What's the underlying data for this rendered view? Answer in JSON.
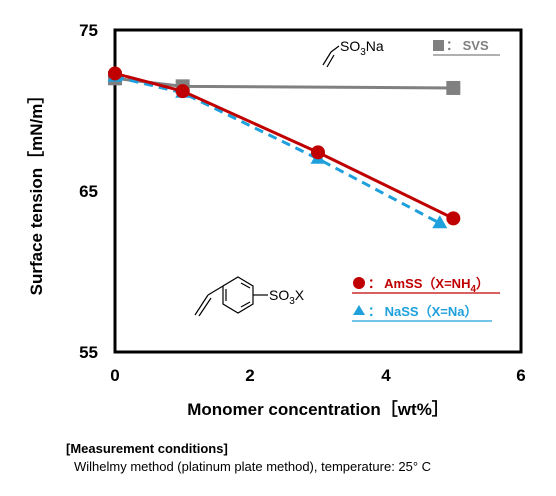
{
  "chart_data": {
    "type": "line",
    "xlabel": "Monomer concentration［wt%］",
    "ylabel": "Surface tension［mN/m］",
    "xlim": [
      0,
      6
    ],
    "ylim": [
      55,
      75
    ],
    "xticks": [
      "0",
      "2",
      "4",
      "6"
    ],
    "yticks": [
      "55",
      "65",
      "75"
    ],
    "grid": false,
    "legend_position": "lower-right and top-right",
    "series": [
      {
        "name": "AmSS（X=NH4）",
        "legend_label": "●：  AmSS（X=NH4）",
        "color": "#c00000",
        "marker": "circle",
        "line": "solid",
        "x": [
          0,
          1,
          3,
          5
        ],
        "y": [
          72.3,
          71.2,
          67.4,
          63.3
        ]
      },
      {
        "name": "NaSS（X=Na）",
        "legend_label": "▲：  NaSS（X=Na）",
        "color": "#1ea0dc",
        "marker": "triangle",
        "line": "dashed",
        "x": [
          0,
          1,
          3,
          4.8
        ],
        "y": [
          72.1,
          71.1,
          67.0,
          63.0
        ]
      },
      {
        "name": "SVS",
        "legend_label": "■：  SVS",
        "color": "#808080",
        "marker": "square",
        "line": "solid",
        "x": [
          0,
          1,
          5
        ],
        "y": [
          72.0,
          71.5,
          71.4
        ]
      }
    ],
    "annotations": {
      "svs_structure": "SO3Na",
      "ss_structure": "SO3X"
    }
  },
  "conditions": {
    "title": "[Measurement conditions]",
    "body": "Wilhelmy method (platinum plate method),  temperature: 25°  C"
  }
}
